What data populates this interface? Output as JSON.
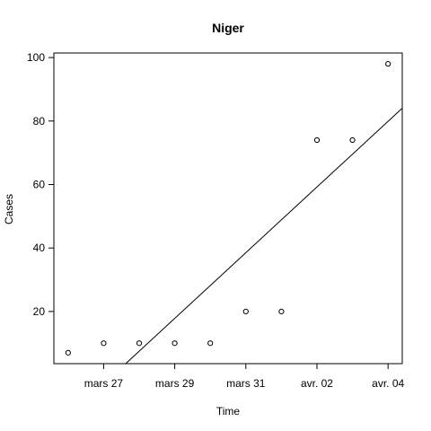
{
  "chart_data": {
    "type": "scatter",
    "title": "Niger",
    "xlabel": "Time",
    "ylabel": "Cases",
    "x_ticks": [
      {
        "value": "2020-03-27",
        "label": "mars 27"
      },
      {
        "value": "2020-03-29",
        "label": "mars 29"
      },
      {
        "value": "2020-03-31",
        "label": "mars 31"
      },
      {
        "value": "2020-04-02",
        "label": "avr. 02"
      },
      {
        "value": "2020-04-04",
        "label": "avr. 04"
      }
    ],
    "y_ticks": [
      20,
      40,
      60,
      80,
      100
    ],
    "xlim": [
      "2020-03-25 14:24",
      "2020-04-04 09:36"
    ],
    "ylim": [
      3.56,
      101.44
    ],
    "grid": false,
    "legend": "none",
    "points": [
      {
        "x": "2020-03-26",
        "y": 7
      },
      {
        "x": "2020-03-27",
        "y": 10
      },
      {
        "x": "2020-03-28",
        "y": 10
      },
      {
        "x": "2020-03-29",
        "y": 10
      },
      {
        "x": "2020-03-30",
        "y": 10
      },
      {
        "x": "2020-03-31",
        "y": 20
      },
      {
        "x": "2020-04-01",
        "y": 20
      },
      {
        "x": "2020-04-02",
        "y": 74
      },
      {
        "x": "2020-04-03",
        "y": 74
      },
      {
        "x": "2020-04-04",
        "y": 98
      }
    ],
    "fit_line": {
      "type": "linear",
      "from": {
        "x": "2020-03-26",
        "y": -13.2
      },
      "to": {
        "x": "2020-04-04",
        "y": 79.9
      }
    }
  }
}
